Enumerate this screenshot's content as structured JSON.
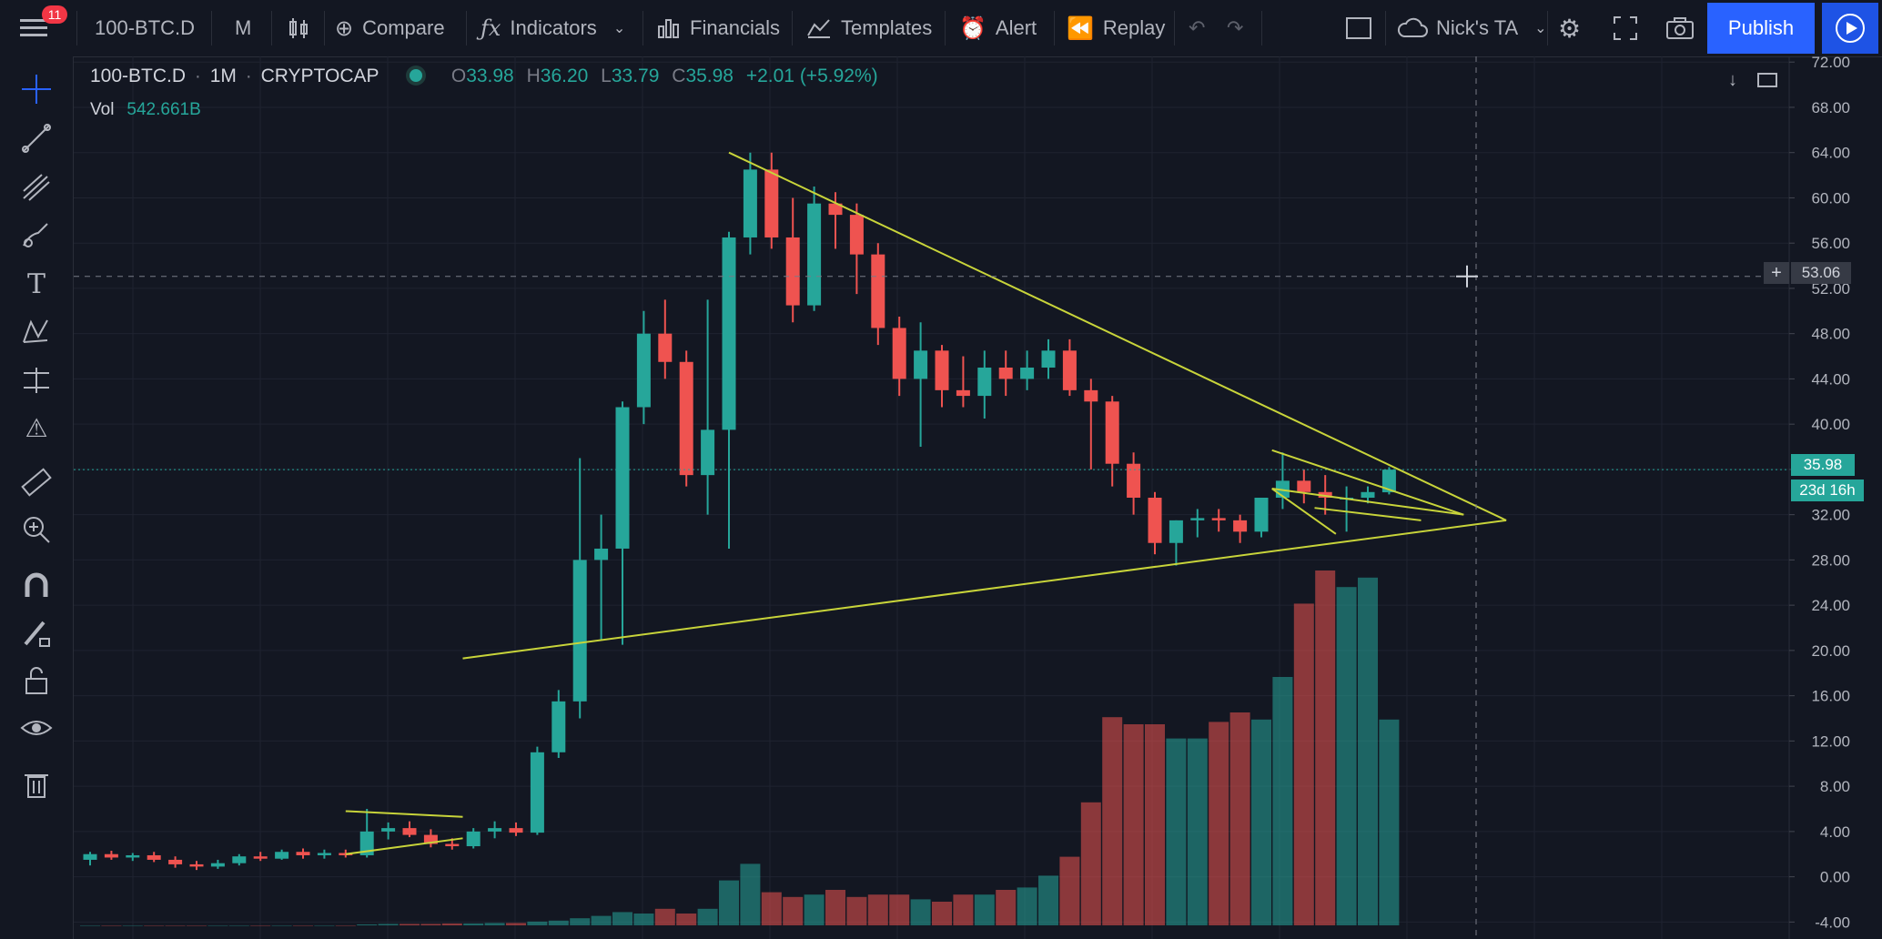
{
  "toolbar": {
    "menu_badge": "11",
    "symbol": "100-BTC.D",
    "interval": "M",
    "compare": "Compare",
    "indicators": "Indicators",
    "financials": "Financials",
    "templates": "Templates",
    "alert": "Alert",
    "replay": "Replay",
    "layout_name": "Nick's TA",
    "publish": "Publish"
  },
  "legend": {
    "symbol": "100-BTC.D",
    "interval": "1M",
    "exchange": "CRYPTOCAP",
    "open_label": "O",
    "open": "33.98",
    "high_label": "H",
    "high": "36.20",
    "low_label": "L",
    "low": "33.79",
    "close_label": "C",
    "close": "35.98",
    "change": "+2.01 (+5.92%)",
    "vol_label": "Vol",
    "vol_value": "542.661B"
  },
  "price_tags": {
    "crosshair": "53.06",
    "last_price": "35.98",
    "countdown": "23d 16h"
  },
  "colors": {
    "up": "#26a69a",
    "down": "#ef5350",
    "trendline": "#c8d43a",
    "background": "#131722",
    "last_price_line": "#26a69a"
  },
  "chart_data": {
    "type": "candlestick",
    "axis_ticks": [
      "72.00",
      "68.00",
      "64.00",
      "60.00",
      "56.00",
      "52.00",
      "48.00",
      "44.00",
      "40.00",
      "36.00",
      "32.00",
      "28.00",
      "24.00",
      "20.00",
      "16.00",
      "12.00",
      "8.00",
      "4.00",
      "0.00",
      "-4.00"
    ],
    "ylim": [
      -5.5,
      72.5
    ],
    "grid": true,
    "candles": [
      {
        "o": 1.5,
        "h": 2.2,
        "l": 1.0,
        "c": 2.0
      },
      {
        "o": 2.0,
        "h": 2.3,
        "l": 1.5,
        "c": 1.7
      },
      {
        "o": 1.7,
        "h": 2.1,
        "l": 1.4,
        "c": 1.9
      },
      {
        "o": 1.9,
        "h": 2.2,
        "l": 1.3,
        "c": 1.5
      },
      {
        "o": 1.5,
        "h": 1.8,
        "l": 0.8,
        "c": 1.1
      },
      {
        "o": 1.1,
        "h": 1.4,
        "l": 0.6,
        "c": 0.9
      },
      {
        "o": 0.9,
        "h": 1.5,
        "l": 0.7,
        "c": 1.2
      },
      {
        "o": 1.2,
        "h": 2.0,
        "l": 1.0,
        "c": 1.8
      },
      {
        "o": 1.8,
        "h": 2.2,
        "l": 1.4,
        "c": 1.6
      },
      {
        "o": 1.6,
        "h": 2.4,
        "l": 1.5,
        "c": 2.2
      },
      {
        "o": 2.2,
        "h": 2.5,
        "l": 1.6,
        "c": 1.9
      },
      {
        "o": 1.9,
        "h": 2.4,
        "l": 1.6,
        "c": 2.1
      },
      {
        "o": 2.1,
        "h": 2.4,
        "l": 1.7,
        "c": 1.9
      },
      {
        "o": 1.9,
        "h": 6.0,
        "l": 1.7,
        "c": 4.0
      },
      {
        "o": 4.0,
        "h": 4.8,
        "l": 3.3,
        "c": 4.3
      },
      {
        "o": 4.3,
        "h": 4.9,
        "l": 3.5,
        "c": 3.7
      },
      {
        "o": 3.7,
        "h": 4.2,
        "l": 2.6,
        "c": 2.9
      },
      {
        "o": 2.9,
        "h": 3.4,
        "l": 2.4,
        "c": 2.7
      },
      {
        "o": 2.7,
        "h": 4.3,
        "l": 2.5,
        "c": 4.0
      },
      {
        "o": 4.0,
        "h": 4.9,
        "l": 3.4,
        "c": 4.3
      },
      {
        "o": 4.3,
        "h": 4.8,
        "l": 3.6,
        "c": 3.9
      },
      {
        "o": 3.9,
        "h": 11.5,
        "l": 3.7,
        "c": 11.0
      },
      {
        "o": 11.0,
        "h": 16.5,
        "l": 10.5,
        "c": 15.5
      },
      {
        "o": 15.5,
        "h": 37.0,
        "l": 14.0,
        "c": 28.0
      },
      {
        "o": 28.0,
        "h": 32.0,
        "l": 21.0,
        "c": 29.0
      },
      {
        "o": 29.0,
        "h": 42.0,
        "l": 20.5,
        "c": 41.5
      },
      {
        "o": 41.5,
        "h": 50.0,
        "l": 40.0,
        "c": 48.0
      },
      {
        "o": 48.0,
        "h": 51.0,
        "l": 44.0,
        "c": 45.5
      },
      {
        "o": 45.5,
        "h": 46.5,
        "l": 34.5,
        "c": 35.5
      },
      {
        "o": 35.5,
        "h": 51.0,
        "l": 32.0,
        "c": 39.5
      },
      {
        "o": 39.5,
        "h": 57.0,
        "l": 29.0,
        "c": 56.5
      },
      {
        "o": 56.5,
        "h": 64.0,
        "l": 55.0,
        "c": 62.5
      },
      {
        "o": 62.5,
        "h": 64.0,
        "l": 55.5,
        "c": 56.5
      },
      {
        "o": 56.5,
        "h": 60.0,
        "l": 49.0,
        "c": 50.5
      },
      {
        "o": 50.5,
        "h": 61.0,
        "l": 50.0,
        "c": 59.5
      },
      {
        "o": 59.5,
        "h": 60.5,
        "l": 55.5,
        "c": 58.5
      },
      {
        "o": 58.5,
        "h": 59.5,
        "l": 51.5,
        "c": 55.0
      },
      {
        "o": 55.0,
        "h": 56.0,
        "l": 47.0,
        "c": 48.5
      },
      {
        "o": 48.5,
        "h": 49.5,
        "l": 42.5,
        "c": 44.0
      },
      {
        "o": 44.0,
        "h": 49.0,
        "l": 38.0,
        "c": 46.5
      },
      {
        "o": 46.5,
        "h": 47.0,
        "l": 41.5,
        "c": 43.0
      },
      {
        "o": 43.0,
        "h": 46.0,
        "l": 41.5,
        "c": 42.5
      },
      {
        "o": 42.5,
        "h": 46.5,
        "l": 40.5,
        "c": 45.0
      },
      {
        "o": 45.0,
        "h": 46.5,
        "l": 42.5,
        "c": 44.0
      },
      {
        "o": 44.0,
        "h": 46.5,
        "l": 43.0,
        "c": 45.0
      },
      {
        "o": 45.0,
        "h": 47.5,
        "l": 44.0,
        "c": 46.5
      },
      {
        "o": 46.5,
        "h": 47.5,
        "l": 42.5,
        "c": 43.0
      },
      {
        "o": 43.0,
        "h": 44.0,
        "l": 36.0,
        "c": 42.0
      },
      {
        "o": 42.0,
        "h": 42.5,
        "l": 34.5,
        "c": 36.5
      },
      {
        "o": 36.5,
        "h": 37.5,
        "l": 32.0,
        "c": 33.5
      },
      {
        "o": 33.5,
        "h": 34.0,
        "l": 28.5,
        "c": 29.5
      },
      {
        "o": 29.5,
        "h": 31.5,
        "l": 27.5,
        "c": 31.5
      },
      {
        "o": 31.5,
        "h": 32.5,
        "l": 30.0,
        "c": 31.7
      },
      {
        "o": 31.7,
        "h": 32.5,
        "l": 30.5,
        "c": 31.5
      },
      {
        "o": 31.5,
        "h": 32.0,
        "l": 29.5,
        "c": 30.5
      },
      {
        "o": 30.5,
        "h": 33.5,
        "l": 30.0,
        "c": 33.5
      },
      {
        "o": 33.5,
        "h": 37.5,
        "l": 32.5,
        "c": 35.0
      },
      {
        "o": 35.0,
        "h": 36.0,
        "l": 33.0,
        "c": 34.0
      },
      {
        "o": 34.0,
        "h": 35.5,
        "l": 32.0,
        "c": 33.5
      },
      {
        "o": 33.5,
        "h": 34.5,
        "l": 30.5,
        "c": 33.5
      },
      {
        "o": 33.5,
        "h": 34.5,
        "l": 33.0,
        "c": 34.0
      },
      {
        "o": 33.98,
        "h": 36.2,
        "l": 33.79,
        "c": 35.98
      }
    ],
    "volume_bars": [
      0,
      0,
      0,
      0,
      0,
      0,
      0,
      0,
      0,
      0,
      0,
      0,
      0,
      0.2,
      0.3,
      0.3,
      0.3,
      0.4,
      0.4,
      0.5,
      0.5,
      0.8,
      1.0,
      1.5,
      2.0,
      2.8,
      2.5,
      3.5,
      2.5,
      3.5,
      9.5,
      13.0,
      7.0,
      6.0,
      6.5,
      7.5,
      6.0,
      6.5,
      6.5,
      5.5,
      5.0,
      6.5,
      6.5,
      7.5,
      8.0,
      10.5,
      14.5,
      26.0,
      44.0,
      42.5,
      42.5,
      39.5,
      39.5,
      43.0,
      45.0,
      43.5,
      52.5,
      68.0,
      75.0,
      71.5,
      73.5,
      43.5
    ]
  }
}
